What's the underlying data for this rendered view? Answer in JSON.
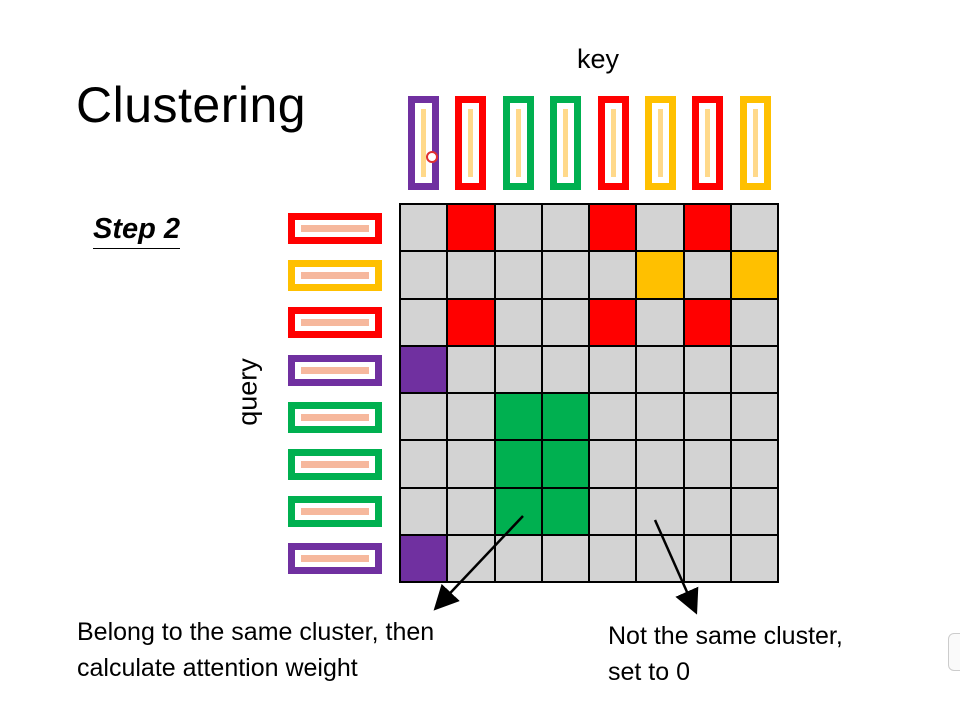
{
  "slide": {
    "title": "Clustering",
    "step": "Step 2",
    "key_label": "key",
    "query_label": "query",
    "caption_left_line1": "Belong to the same cluster, then",
    "caption_left_line2": "calculate attention weight",
    "caption_right_line1": "Not the same cluster,",
    "caption_right_line2": "set to 0"
  },
  "colors": {
    "purple": "#7030a0",
    "red": "#ff0000",
    "green": "#00b050",
    "yellow": "#ffc000",
    "gray": "#d3d3d3"
  },
  "keys": [
    "purple",
    "red",
    "green",
    "green",
    "red",
    "yellow",
    "red",
    "yellow"
  ],
  "queries": [
    "red",
    "yellow",
    "red",
    "purple",
    "green",
    "green",
    "green",
    "purple"
  ],
  "matrix": [
    [
      "gray",
      "red",
      "gray",
      "gray",
      "red",
      "gray",
      "red",
      "gray"
    ],
    [
      "gray",
      "gray",
      "gray",
      "gray",
      "gray",
      "yellow",
      "gray",
      "yellow"
    ],
    [
      "gray",
      "red",
      "gray",
      "gray",
      "red",
      "gray",
      "red",
      "gray"
    ],
    [
      "purple",
      "gray",
      "gray",
      "gray",
      "gray",
      "gray",
      "gray",
      "gray"
    ],
    [
      "gray",
      "gray",
      "green",
      "green",
      "gray",
      "gray",
      "gray",
      "gray"
    ],
    [
      "gray",
      "gray",
      "green",
      "green",
      "gray",
      "gray",
      "gray",
      "gray"
    ],
    [
      "gray",
      "gray",
      "green",
      "green",
      "gray",
      "gray",
      "gray",
      "gray"
    ],
    [
      "purple",
      "gray",
      "gray",
      "gray",
      "gray",
      "gray",
      "gray",
      "gray"
    ]
  ]
}
